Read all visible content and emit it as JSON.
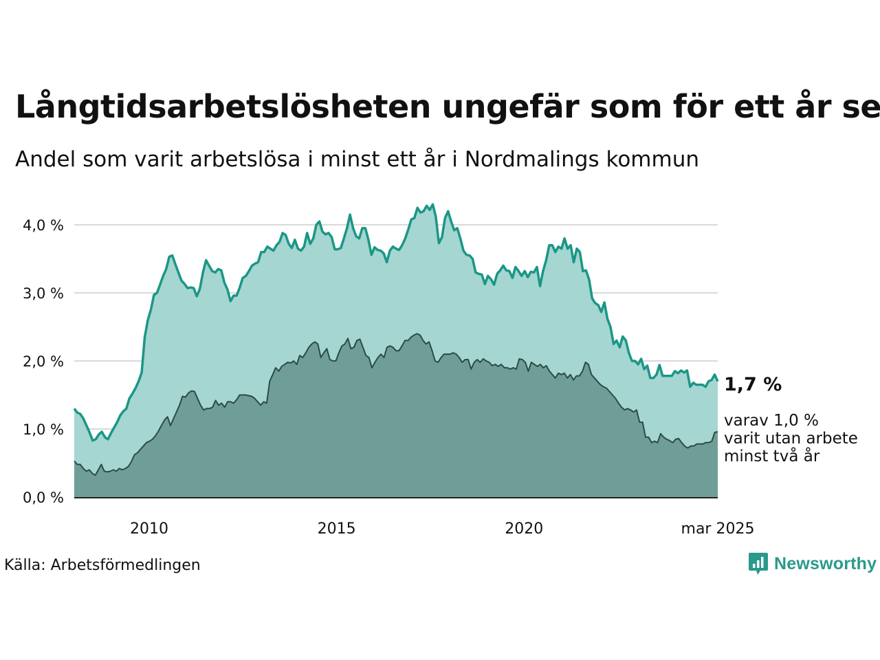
{
  "header": {
    "title": "Långtidsarbetslösheten ungefär som för ett år sen",
    "subtitle": "Andel som varit arbetslösa i minst ett år i Nordmalings kommun"
  },
  "footer": {
    "source": "Källa: Arbetsförmedlingen",
    "logo_text": "Newsworthy"
  },
  "colors": {
    "series1_line": "#1b9686",
    "series1_fill": "#a5d6d1",
    "series2_line": "#2d4a45",
    "series2_fill": "#6f9e98",
    "grid": "#d9d9d9",
    "axis": "#222222",
    "brand": "#2a9a8a"
  },
  "chart_data": {
    "type": "area",
    "x_start": "2008-01",
    "x_end": "2025-03",
    "frequency": "monthly",
    "ylim": [
      0,
      4.4
    ],
    "grid": true,
    "yticks": [
      {
        "value": 0,
        "label": "0,0 %"
      },
      {
        "value": 1,
        "label": "1,0 %"
      },
      {
        "value": 2,
        "label": "2,0 %"
      },
      {
        "value": 3,
        "label": "3,0 %"
      },
      {
        "value": 4,
        "label": "4,0 %"
      }
    ],
    "xticks": [
      {
        "value": "2010-01",
        "label": "2010"
      },
      {
        "value": "2015-01",
        "label": "2015"
      },
      {
        "value": "2020-01",
        "label": "2020"
      },
      {
        "value": "2025-03",
        "label": "mar 2025"
      }
    ],
    "series": [
      {
        "values": [
          1.3,
          1.24,
          1.22,
          1.15,
          1.05,
          0.95,
          0.83,
          0.85,
          0.92,
          0.96,
          0.88,
          0.85,
          0.94,
          1.02,
          1.1,
          1.2,
          1.26,
          1.3,
          1.45,
          1.52,
          1.6,
          1.7,
          1.83,
          2.35,
          2.6,
          2.75,
          2.97,
          3.0,
          3.12,
          3.25,
          3.35,
          3.53,
          3.55,
          3.42,
          3.3,
          3.18,
          3.13,
          3.07,
          3.08,
          3.07,
          2.95,
          3.06,
          3.3,
          3.48,
          3.4,
          3.32,
          3.3,
          3.35,
          3.33,
          3.15,
          3.05,
          2.88,
          2.96,
          2.96,
          3.08,
          3.22,
          3.25,
          3.32,
          3.4,
          3.43,
          3.45,
          3.6,
          3.6,
          3.68,
          3.65,
          3.62,
          3.7,
          3.75,
          3.88,
          3.85,
          3.72,
          3.66,
          3.78,
          3.65,
          3.62,
          3.68,
          3.88,
          3.72,
          3.8,
          4.0,
          4.05,
          3.9,
          3.86,
          3.88,
          3.82,
          3.64,
          3.64,
          3.66,
          3.8,
          3.95,
          4.15,
          3.95,
          3.83,
          3.8,
          3.95,
          3.95,
          3.78,
          3.56,
          3.67,
          3.63,
          3.62,
          3.58,
          3.45,
          3.62,
          3.68,
          3.65,
          3.63,
          3.7,
          3.8,
          3.93,
          4.08,
          4.1,
          4.25,
          4.18,
          4.2,
          4.28,
          4.22,
          4.3,
          4.12,
          3.73,
          3.82,
          4.1,
          4.2,
          4.05,
          3.92,
          3.95,
          3.8,
          3.62,
          3.56,
          3.55,
          3.5,
          3.3,
          3.28,
          3.27,
          3.13,
          3.25,
          3.2,
          3.12,
          3.28,
          3.33,
          3.4,
          3.33,
          3.32,
          3.22,
          3.38,
          3.32,
          3.25,
          3.32,
          3.23,
          3.31,
          3.3,
          3.38,
          3.1,
          3.32,
          3.48,
          3.7,
          3.7,
          3.6,
          3.68,
          3.65,
          3.8,
          3.65,
          3.7,
          3.45,
          3.65,
          3.6,
          3.32,
          3.33,
          3.2,
          2.92,
          2.85,
          2.82,
          2.72,
          2.86,
          2.62,
          2.5,
          2.25,
          2.3,
          2.2,
          2.36,
          2.3,
          2.12,
          2.0,
          2.0,
          1.95,
          2.03,
          1.88,
          1.93,
          1.75,
          1.75,
          1.8,
          1.94,
          1.78,
          1.78,
          1.78,
          1.78,
          1.85,
          1.82,
          1.86,
          1.83,
          1.86,
          1.62,
          1.68,
          1.65,
          1.65,
          1.65,
          1.62,
          1.7,
          1.72,
          1.8,
          1.7
        ]
      },
      {
        "values": [
          0.53,
          0.48,
          0.48,
          0.42,
          0.38,
          0.4,
          0.35,
          0.32,
          0.4,
          0.48,
          0.38,
          0.37,
          0.38,
          0.4,
          0.38,
          0.42,
          0.4,
          0.42,
          0.45,
          0.52,
          0.62,
          0.65,
          0.7,
          0.75,
          0.8,
          0.82,
          0.85,
          0.9,
          0.97,
          1.05,
          1.13,
          1.18,
          1.05,
          1.15,
          1.25,
          1.35,
          1.48,
          1.47,
          1.53,
          1.56,
          1.55,
          1.45,
          1.35,
          1.28,
          1.3,
          1.3,
          1.32,
          1.42,
          1.35,
          1.38,
          1.32,
          1.4,
          1.4,
          1.38,
          1.43,
          1.5,
          1.5,
          1.5,
          1.49,
          1.48,
          1.45,
          1.4,
          1.35,
          1.4,
          1.38,
          1.7,
          1.8,
          1.9,
          1.85,
          1.92,
          1.95,
          1.98,
          1.97,
          2.0,
          1.95,
          2.08,
          2.05,
          2.12,
          2.2,
          2.25,
          2.28,
          2.25,
          2.05,
          2.12,
          2.18,
          2.02,
          2.0,
          2.0,
          2.12,
          2.22,
          2.25,
          2.33,
          2.18,
          2.2,
          2.3,
          2.32,
          2.2,
          2.08,
          2.05,
          1.9,
          1.98,
          2.05,
          2.1,
          2.05,
          2.2,
          2.22,
          2.2,
          2.15,
          2.15,
          2.22,
          2.3,
          2.3,
          2.35,
          2.38,
          2.4,
          2.38,
          2.3,
          2.25,
          2.28,
          2.15,
          2.0,
          1.98,
          2.05,
          2.1,
          2.1,
          2.1,
          2.12,
          2.1,
          2.05,
          1.98,
          2.02,
          2.02,
          1.88,
          1.98,
          2.02,
          1.98,
          2.03,
          2.0,
          1.98,
          1.93,
          1.95,
          1.92,
          1.95,
          1.9,
          1.9,
          1.88,
          1.9,
          1.88,
          2.03,
          2.02,
          1.98,
          1.85,
          1.98,
          1.95,
          1.92,
          1.95,
          1.9,
          1.93,
          1.85,
          1.8,
          1.75,
          1.82,
          1.8,
          1.82,
          1.75,
          1.8,
          1.72,
          1.78,
          1.78,
          1.85,
          1.98,
          1.95,
          1.8,
          1.75,
          1.7,
          1.65,
          1.62,
          1.6,
          1.55,
          1.5,
          1.45,
          1.38,
          1.32,
          1.28,
          1.3,
          1.28,
          1.25,
          1.28,
          1.1,
          1.1,
          0.88,
          0.88,
          0.8,
          0.82,
          0.8,
          0.93,
          0.88,
          0.85,
          0.83,
          0.8,
          0.85,
          0.86,
          0.8,
          0.75,
          0.72,
          0.75,
          0.75,
          0.78,
          0.78,
          0.78,
          0.8,
          0.8,
          0.82,
          0.95,
          0.96
        ]
      }
    ],
    "annotations": {
      "last_value_label": "1,7 %",
      "sub_label_lines": [
        "varav 1,0 %",
        "varit utan arbete",
        "minst två år"
      ]
    }
  }
}
